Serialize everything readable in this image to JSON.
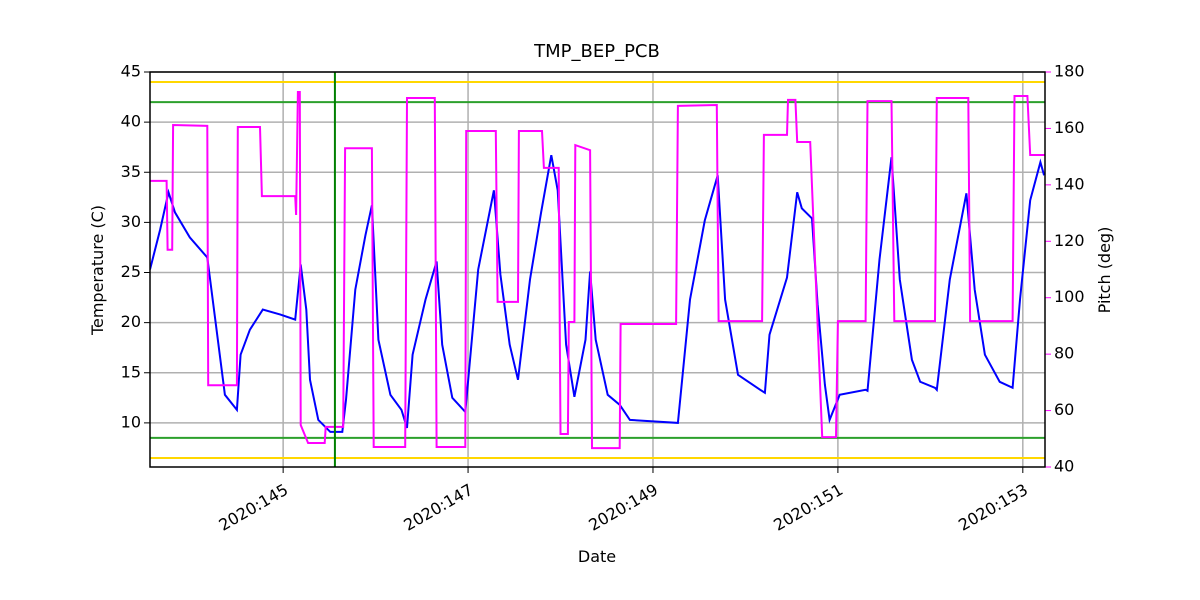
{
  "chart_data": {
    "type": "line",
    "title": "TMP_BEP_PCB",
    "x_label": "Date",
    "y_label": "Temperature (C)",
    "y2_label": "Pitch (deg)",
    "y2_color": "#ff00ff",
    "grid": true,
    "xlim": [
      143.56,
      153.24
    ],
    "xticks": [
      {
        "value": 145,
        "label": "2020:145"
      },
      {
        "value": 147,
        "label": "2020:147"
      },
      {
        "value": 149,
        "label": "2020:149"
      },
      {
        "value": 151,
        "label": "2020:151"
      },
      {
        "value": 153,
        "label": "2020:153"
      }
    ],
    "ylim": [
      5.6,
      45
    ],
    "yticks": [
      10,
      15,
      20,
      25,
      30,
      35,
      40,
      45
    ],
    "y2lim": [
      40,
      180
    ],
    "y2ticks": [
      40,
      60,
      80,
      100,
      120,
      140,
      160,
      180
    ],
    "hlines": [
      {
        "value": 44,
        "color": "#ffd700"
      },
      {
        "value": 6.5,
        "color": "#ffd700"
      },
      {
        "value": 42,
        "color": "#2ca02c"
      },
      {
        "value": 8.5,
        "color": "#2ca02c"
      }
    ],
    "vlines": [
      {
        "value": 145.56,
        "color": "#008000"
      }
    ],
    "series": [
      {
        "color": "#0000ff",
        "x": [
          143.56,
          143.67,
          143.76,
          143.83,
          143.99,
          144.18,
          144.37,
          144.5,
          144.54,
          144.64,
          144.78,
          144.97,
          145.13,
          145.19,
          145.25,
          145.29,
          145.38,
          145.51,
          145.64,
          145.68,
          145.78,
          145.89,
          145.96,
          146.03,
          146.16,
          146.28,
          146.34,
          146.4,
          146.54,
          146.66,
          146.72,
          146.83,
          146.97,
          147.11,
          147.28,
          147.35,
          147.45,
          147.54,
          147.67,
          147.79,
          147.9,
          147.97,
          148.06,
          148.15,
          148.27,
          148.32,
          148.38,
          148.51,
          148.64,
          148.75,
          149.27,
          149.4,
          149.56,
          149.7,
          149.78,
          149.92,
          150.16,
          150.21,
          150.26,
          150.45,
          150.56,
          150.61,
          150.72,
          150.78,
          150.86,
          150.91,
          151.02,
          151.3,
          151.32,
          151.45,
          151.58,
          151.67,
          151.8,
          151.89,
          152.05,
          152.07,
          152.21,
          152.39,
          152.48,
          152.59,
          152.75,
          152.89,
          152.97,
          153.08,
          153.19,
          153.23
        ],
        "values": [
          25.3,
          29.3,
          33,
          31,
          28.5,
          26.5,
          12.8,
          11.3,
          16.8,
          19.3,
          21.3,
          20.8,
          20.3,
          25.8,
          21.3,
          14.3,
          10.3,
          9.1,
          9.1,
          12.3,
          23.3,
          28.7,
          31.7,
          18.3,
          12.8,
          11.3,
          9.5,
          16.8,
          22.3,
          26.1,
          17.8,
          12.5,
          11.1,
          25.3,
          33.2,
          24.8,
          17.8,
          14.3,
          24.3,
          31,
          36.7,
          33.2,
          17.8,
          12.6,
          18.3,
          25.1,
          18.3,
          12.8,
          11.8,
          10.3,
          10,
          22.3,
          30.2,
          34.7,
          22.3,
          14.8,
          13.3,
          13,
          18.8,
          24.5,
          33,
          31.4,
          30.4,
          21.8,
          13.8,
          10.3,
          12.8,
          13.3,
          13.2,
          26.3,
          36.5,
          24.3,
          16.3,
          14.1,
          13.5,
          13.3,
          24.3,
          32.9,
          23.3,
          16.8,
          14.1,
          13.5,
          22.3,
          32.2,
          36,
          34.7
        ]
      },
      {
        "color": "#ff00ff",
        "axis": "y2",
        "x": [
          143.56,
          143.74,
          143.75,
          143.8,
          143.81,
          144.18,
          144.19,
          144.5,
          144.51,
          144.75,
          144.77,
          145.13,
          145.14,
          145.16,
          145.18,
          145.19,
          145.27,
          145.45,
          145.46,
          145.65,
          145.67,
          145.96,
          145.98,
          146.32,
          146.34,
          146.64,
          146.66,
          146.97,
          146.98,
          147.3,
          147.32,
          147.54,
          147.55,
          147.8,
          147.82,
          147.98,
          148.0,
          148.08,
          148.09,
          148.15,
          148.16,
          148.32,
          148.34,
          148.64,
          148.65,
          149.25,
          149.27,
          149.69,
          149.71,
          150.18,
          150.2,
          150.45,
          150.46,
          150.54,
          150.56,
          150.7,
          150.83,
          150.98,
          151.0,
          151.3,
          151.32,
          151.58,
          151.61,
          152.05,
          152.07,
          152.41,
          152.43,
          152.89,
          152.91,
          153.05,
          153.08,
          153.24
        ],
        "values": [
          141.4,
          141.4,
          117,
          117,
          161.2,
          160.9,
          69,
          69,
          160.5,
          160.5,
          136,
          136,
          129.3,
          172.9,
          172.9,
          54.9,
          48.5,
          48.5,
          54.2,
          54.2,
          153,
          153,
          47.1,
          47.1,
          170.8,
          170.8,
          47.1,
          47.1,
          159.1,
          159.1,
          98.5,
          98.5,
          159.1,
          159.1,
          146,
          146,
          51.7,
          51.7,
          91.4,
          91.4,
          154.1,
          152.3,
          46.7,
          46.7,
          90.7,
          90.7,
          168,
          168.3,
          91.7,
          91.7,
          157.7,
          157.7,
          170.1,
          170.1,
          155.2,
          155.2,
          50.6,
          50.6,
          91.7,
          91.7,
          169.7,
          169.7,
          91.7,
          91.7,
          170.8,
          170.8,
          91.7,
          91.7,
          171.5,
          171.5,
          150.6,
          150.6
        ]
      }
    ]
  }
}
